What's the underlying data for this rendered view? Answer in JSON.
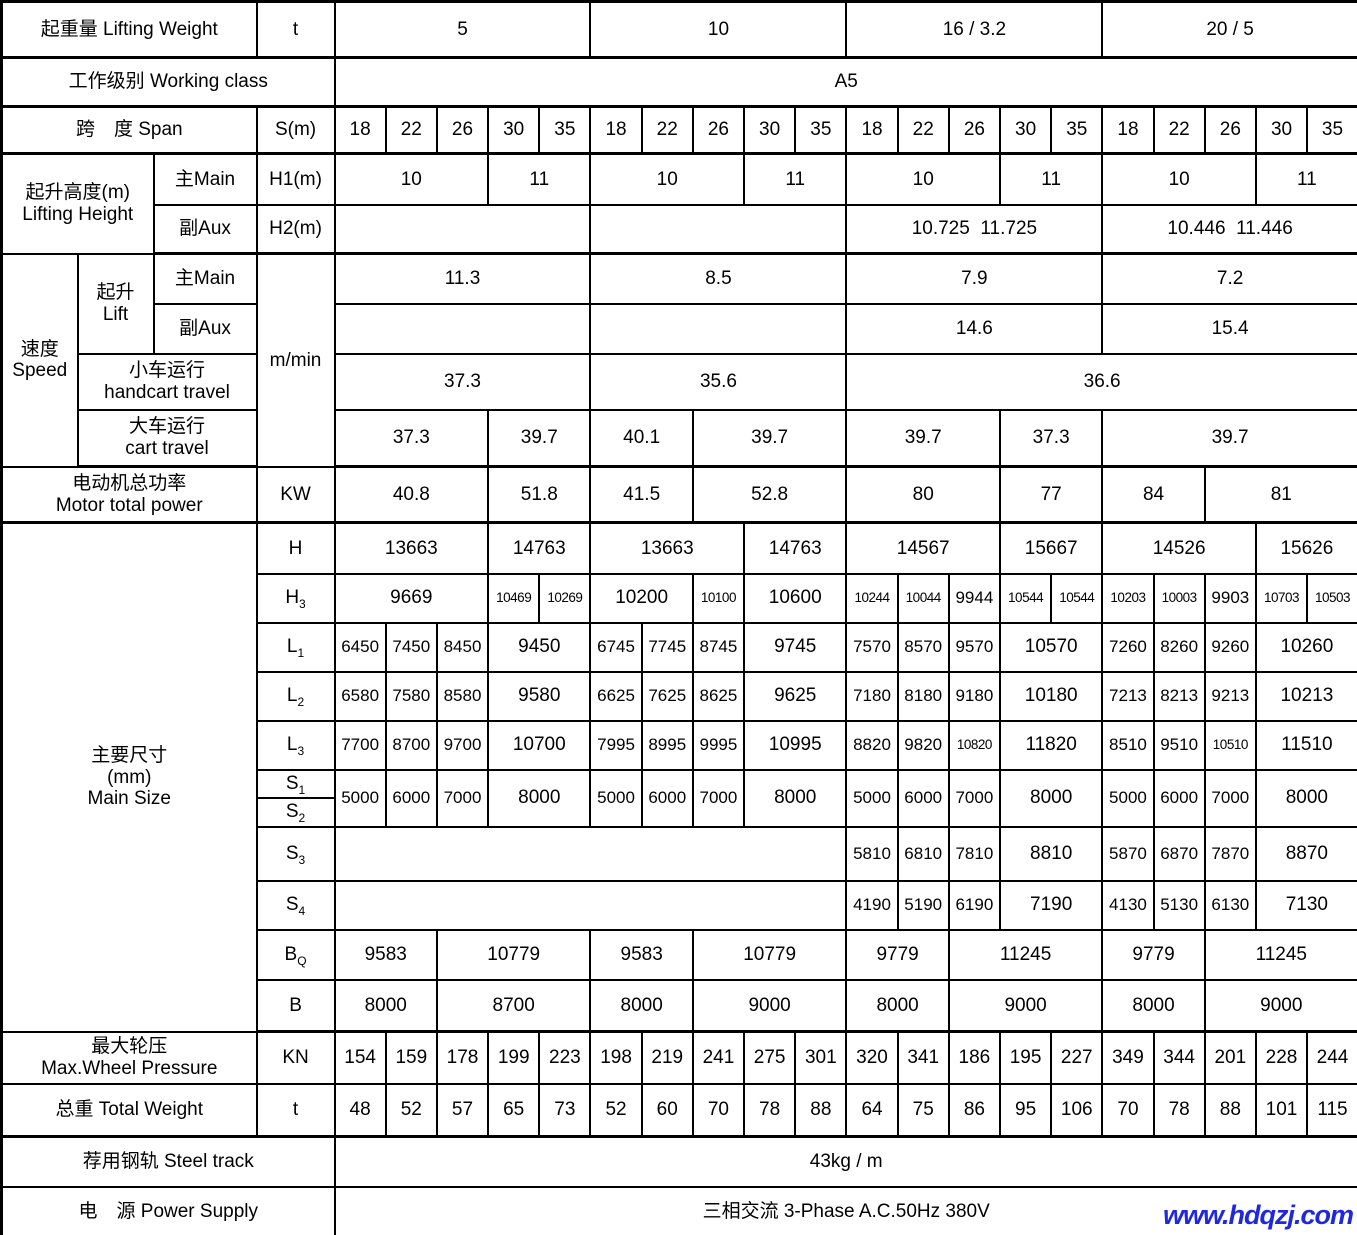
{
  "watermark": {
    "text": "www.hdqzj.com",
    "color": "#2028dd"
  },
  "table": {
    "rows": [
      {
        "name": "lifting-weight",
        "cells": [
          {
            "t": "起重量 Lifting Weight",
            "cs": 3,
            "kind": "label"
          },
          {
            "t": "t",
            "kind": "unit"
          },
          {
            "t": "5",
            "cs": 5
          },
          {
            "t": "10",
            "cs": 5
          },
          {
            "t": "16 / 3.2",
            "cs": 5
          },
          {
            "t": "20 / 5",
            "cs": 5
          }
        ]
      },
      {
        "name": "working-class",
        "cells": [
          {
            "t": "工作级别 Working class",
            "cs": 4,
            "kind": "label"
          },
          {
            "t": "A5",
            "cs": 20
          }
        ]
      },
      {
        "name": "span",
        "cells": [
          {
            "t": "跨　度 Span",
            "cs": 3,
            "kind": "label"
          },
          {
            "t": "S(m)",
            "kind": "unit"
          },
          {
            "t": "18"
          },
          {
            "t": "22"
          },
          {
            "t": "26"
          },
          {
            "t": "30"
          },
          {
            "t": "35"
          },
          {
            "t": "18"
          },
          {
            "t": "22"
          },
          {
            "t": "26"
          },
          {
            "t": "30"
          },
          {
            "t": "35"
          },
          {
            "t": "18"
          },
          {
            "t": "22"
          },
          {
            "t": "26"
          },
          {
            "t": "30"
          },
          {
            "t": "35"
          },
          {
            "t": "18"
          },
          {
            "t": "22"
          },
          {
            "t": "26"
          },
          {
            "t": "30"
          },
          {
            "t": "35"
          }
        ]
      },
      {
        "name": "lifting-height-main",
        "cells": [
          {
            "t": "起升高度(m)\nLifting Height",
            "cs": 2,
            "rs": 2,
            "kind": "label"
          },
          {
            "t": "主Main",
            "kind": "label"
          },
          {
            "t": "H1(m)",
            "kind": "unit"
          },
          {
            "t": "10",
            "cs": 3
          },
          {
            "t": "11",
            "cs": 2
          },
          {
            "t": "10",
            "cs": 3
          },
          {
            "t": "11",
            "cs": 2
          },
          {
            "t": "10",
            "cs": 3
          },
          {
            "t": "11",
            "cs": 2
          },
          {
            "t": "10",
            "cs": 3
          },
          {
            "t": "11",
            "cs": 2
          }
        ]
      },
      {
        "name": "lifting-height-aux",
        "cells": [
          {
            "t": "副Aux",
            "kind": "label"
          },
          {
            "t": "H2(m)",
            "kind": "unit"
          },
          {
            "t": "",
            "cs": 5
          },
          {
            "t": "",
            "cs": 5
          },
          {
            "t": "10.725  11.725",
            "cs": 5
          },
          {
            "t": "10.446  11.446",
            "cs": 5
          }
        ]
      },
      {
        "name": "speed-lift-main",
        "cells": [
          {
            "t": "速度\nSpeed",
            "rs": 4,
            "kind": "label"
          },
          {
            "t": "起升\nLift",
            "rs": 2,
            "kind": "label"
          },
          {
            "t": "主Main",
            "kind": "label"
          },
          {
            "t": "m/min",
            "rs": 4,
            "kind": "unit"
          },
          {
            "t": "11.3",
            "cs": 5
          },
          {
            "t": "8.5",
            "cs": 5
          },
          {
            "t": "7.9",
            "cs": 5
          },
          {
            "t": "7.2",
            "cs": 5
          }
        ]
      },
      {
        "name": "speed-lift-aux",
        "cells": [
          {
            "t": "副Aux",
            "kind": "label"
          },
          {
            "t": "",
            "cs": 5
          },
          {
            "t": "",
            "cs": 5
          },
          {
            "t": "14.6",
            "cs": 5
          },
          {
            "t": "15.4",
            "cs": 5
          }
        ]
      },
      {
        "name": "speed-trolley-travel",
        "cells": [
          {
            "t": "小车运行\nhandcart travel",
            "cs": 2,
            "kind": "label"
          },
          {
            "t": "37.3",
            "cs": 5
          },
          {
            "t": "35.6",
            "cs": 5
          },
          {
            "t": "36.6",
            "cs": 10
          }
        ]
      },
      {
        "name": "speed-cart-travel",
        "cells": [
          {
            "t": "大车运行\ncart travel",
            "cs": 2,
            "kind": "label"
          },
          {
            "t": "37.3",
            "cs": 3
          },
          {
            "t": "39.7",
            "cs": 2
          },
          {
            "t": "40.1",
            "cs": 2
          },
          {
            "t": "39.7",
            "cs": 3
          },
          {
            "t": "39.7",
            "cs": 3
          },
          {
            "t": "37.3",
            "cs": 2
          },
          {
            "t": "39.7",
            "cs": 5
          }
        ]
      },
      {
        "name": "motor-total-power",
        "cells": [
          {
            "t": "电动机总功率\nMotor total power",
            "cs": 3,
            "kind": "label"
          },
          {
            "t": "KW",
            "kind": "unit"
          },
          {
            "t": "40.8",
            "cs": 3
          },
          {
            "t": "51.8",
            "cs": 2
          },
          {
            "t": "41.5",
            "cs": 2
          },
          {
            "t": "52.8",
            "cs": 3
          },
          {
            "t": "80",
            "cs": 3
          },
          {
            "t": "77",
            "cs": 2
          },
          {
            "t": "84",
            "cs": 2
          },
          {
            "t": "81",
            "cs": 3
          }
        ]
      },
      {
        "name": "size-H",
        "cells": [
          {
            "t": "主要尺寸\n(mm)\nMain Size",
            "cs": 3,
            "rs": 11,
            "kind": "label"
          },
          {
            "t": "H",
            "kind": "unit"
          },
          {
            "t": "13663",
            "cs": 3
          },
          {
            "t": "14763",
            "cs": 2
          },
          {
            "t": "13663",
            "cs": 3
          },
          {
            "t": "14763",
            "cs": 2
          },
          {
            "t": "14567",
            "cs": 3
          },
          {
            "t": "15667",
            "cs": 2
          },
          {
            "t": "14526",
            "cs": 3
          },
          {
            "t": "15626",
            "cs": 2
          }
        ]
      },
      {
        "name": "size-H3",
        "cells": [
          {
            "t": "H",
            "sub": "3",
            "kind": "unit"
          },
          {
            "t": "9669",
            "cs": 3
          },
          {
            "t": "10469"
          },
          {
            "t": "10269"
          },
          {
            "t": "10200",
            "cs": 2
          },
          {
            "t": "10100"
          },
          {
            "t": "10600",
            "cs": 2
          },
          {
            "t": "10244"
          },
          {
            "t": "10044"
          },
          {
            "t": "9944"
          },
          {
            "t": "10544"
          },
          {
            "t": "10544"
          },
          {
            "t": "10203"
          },
          {
            "t": "10003"
          },
          {
            "t": "9903"
          },
          {
            "t": "10703"
          },
          {
            "t": "10503"
          }
        ]
      },
      {
        "name": "size-L1",
        "cells": [
          {
            "t": "L",
            "sub": "1",
            "kind": "unit"
          },
          {
            "t": "6450"
          },
          {
            "t": "7450"
          },
          {
            "t": "8450"
          },
          {
            "t": "9450",
            "cs": 2
          },
          {
            "t": "6745"
          },
          {
            "t": "7745"
          },
          {
            "t": "8745"
          },
          {
            "t": "9745",
            "cs": 2
          },
          {
            "t": "7570"
          },
          {
            "t": "8570"
          },
          {
            "t": "9570"
          },
          {
            "t": "10570",
            "cs": 2
          },
          {
            "t": "7260"
          },
          {
            "t": "8260"
          },
          {
            "t": "9260"
          },
          {
            "t": "10260",
            "cs": 2
          }
        ]
      },
      {
        "name": "size-L2",
        "cells": [
          {
            "t": "L",
            "sub": "2",
            "kind": "unit"
          },
          {
            "t": "6580"
          },
          {
            "t": "7580"
          },
          {
            "t": "8580"
          },
          {
            "t": "9580",
            "cs": 2
          },
          {
            "t": "6625"
          },
          {
            "t": "7625"
          },
          {
            "t": "8625"
          },
          {
            "t": "9625",
            "cs": 2
          },
          {
            "t": "7180"
          },
          {
            "t": "8180"
          },
          {
            "t": "9180"
          },
          {
            "t": "10180",
            "cs": 2
          },
          {
            "t": "7213"
          },
          {
            "t": "8213"
          },
          {
            "t": "9213"
          },
          {
            "t": "10213",
            "cs": 2
          }
        ]
      },
      {
        "name": "size-L3",
        "cells": [
          {
            "t": "L",
            "sub": "3",
            "kind": "unit"
          },
          {
            "t": "7700"
          },
          {
            "t": "8700"
          },
          {
            "t": "9700"
          },
          {
            "t": "10700",
            "cs": 2
          },
          {
            "t": "7995"
          },
          {
            "t": "8995"
          },
          {
            "t": "9995"
          },
          {
            "t": "10995",
            "cs": 2
          },
          {
            "t": "8820"
          },
          {
            "t": "9820"
          },
          {
            "t": "10820"
          },
          {
            "t": "11820",
            "cs": 2
          },
          {
            "t": "8510"
          },
          {
            "t": "9510"
          },
          {
            "t": "10510"
          },
          {
            "t": "11510",
            "cs": 2
          }
        ]
      },
      {
        "name": "size-S1",
        "cells": [
          {
            "t": "S",
            "sub": "1",
            "kind": "unit"
          },
          {
            "t": "5000",
            "rs": 2
          },
          {
            "t": "6000",
            "rs": 2
          },
          {
            "t": "7000",
            "rs": 2
          },
          {
            "t": "8000",
            "cs": 2,
            "rs": 2
          },
          {
            "t": "5000",
            "rs": 2
          },
          {
            "t": "6000",
            "rs": 2
          },
          {
            "t": "7000",
            "rs": 2
          },
          {
            "t": "8000",
            "cs": 2,
            "rs": 2
          },
          {
            "t": "5000",
            "rs": 2
          },
          {
            "t": "6000",
            "rs": 2
          },
          {
            "t": "7000",
            "rs": 2
          },
          {
            "t": "8000",
            "cs": 2,
            "rs": 2
          },
          {
            "t": "5000",
            "rs": 2
          },
          {
            "t": "6000",
            "rs": 2
          },
          {
            "t": "7000",
            "rs": 2
          },
          {
            "t": "8000",
            "cs": 2,
            "rs": 2
          }
        ]
      },
      {
        "name": "size-S2",
        "cells": [
          {
            "t": "S",
            "sub": "2",
            "kind": "unit"
          }
        ]
      },
      {
        "name": "size-S3",
        "cells": [
          {
            "t": "S",
            "sub": "3",
            "kind": "unit"
          },
          {
            "t": "",
            "cs": 10
          },
          {
            "t": "5810"
          },
          {
            "t": "6810"
          },
          {
            "t": "7810"
          },
          {
            "t": "8810",
            "cs": 2
          },
          {
            "t": "5870"
          },
          {
            "t": "6870"
          },
          {
            "t": "7870"
          },
          {
            "t": "8870",
            "cs": 2
          }
        ]
      },
      {
        "name": "size-S4",
        "cells": [
          {
            "t": "S",
            "sub": "4",
            "kind": "unit"
          },
          {
            "t": "",
            "cs": 10
          },
          {
            "t": "4190"
          },
          {
            "t": "5190"
          },
          {
            "t": "6190"
          },
          {
            "t": "7190",
            "cs": 2
          },
          {
            "t": "4130"
          },
          {
            "t": "5130"
          },
          {
            "t": "6130"
          },
          {
            "t": "7130",
            "cs": 2
          }
        ]
      },
      {
        "name": "size-BQ",
        "cells": [
          {
            "t": "B",
            "sub": "Q",
            "kind": "unit"
          },
          {
            "t": "9583",
            "cs": 2
          },
          {
            "t": "10779",
            "cs": 3
          },
          {
            "t": "9583",
            "cs": 2
          },
          {
            "t": "10779",
            "cs": 3
          },
          {
            "t": "9779",
            "cs": 2
          },
          {
            "t": "11245",
            "cs": 3
          },
          {
            "t": "9779",
            "cs": 2
          },
          {
            "t": "11245",
            "cs": 3
          }
        ]
      },
      {
        "name": "size-B",
        "cells": [
          {
            "t": "B",
            "kind": "unit"
          },
          {
            "t": "8000",
            "cs": 2
          },
          {
            "t": "8700",
            "cs": 3
          },
          {
            "t": "8000",
            "cs": 2
          },
          {
            "t": "9000",
            "cs": 3
          },
          {
            "t": "8000",
            "cs": 2
          },
          {
            "t": "9000",
            "cs": 3
          },
          {
            "t": "8000",
            "cs": 2
          },
          {
            "t": "9000",
            "cs": 3
          }
        ]
      },
      {
        "name": "max-wheel-pressure",
        "cells": [
          {
            "t": "最大轮压\nMax.Wheel Pressure",
            "cs": 3,
            "kind": "label"
          },
          {
            "t": "KN",
            "kind": "unit"
          },
          {
            "t": "154"
          },
          {
            "t": "159"
          },
          {
            "t": "178"
          },
          {
            "t": "199"
          },
          {
            "t": "223"
          },
          {
            "t": "198"
          },
          {
            "t": "219"
          },
          {
            "t": "241"
          },
          {
            "t": "275"
          },
          {
            "t": "301"
          },
          {
            "t": "320"
          },
          {
            "t": "341"
          },
          {
            "t": "186"
          },
          {
            "t": "195"
          },
          {
            "t": "227"
          },
          {
            "t": "349"
          },
          {
            "t": "344"
          },
          {
            "t": "201"
          },
          {
            "t": "228"
          },
          {
            "t": "244"
          }
        ]
      },
      {
        "name": "total-weight",
        "cells": [
          {
            "t": "总重 Total Weight",
            "cs": 3,
            "kind": "label"
          },
          {
            "t": "t",
            "kind": "unit"
          },
          {
            "t": "48"
          },
          {
            "t": "52"
          },
          {
            "t": "57"
          },
          {
            "t": "65"
          },
          {
            "t": "73"
          },
          {
            "t": "52"
          },
          {
            "t": "60"
          },
          {
            "t": "70"
          },
          {
            "t": "78"
          },
          {
            "t": "88"
          },
          {
            "t": "64"
          },
          {
            "t": "75"
          },
          {
            "t": "86"
          },
          {
            "t": "95"
          },
          {
            "t": "106"
          },
          {
            "t": "70"
          },
          {
            "t": "78"
          },
          {
            "t": "88"
          },
          {
            "t": "101"
          },
          {
            "t": "115"
          }
        ]
      },
      {
        "name": "steel-track",
        "cells": [
          {
            "t": "荐用钢轨 Steel track",
            "cs": 4,
            "kind": "label"
          },
          {
            "t": "43kg / m",
            "cs": 20
          }
        ]
      },
      {
        "name": "power-supply",
        "cells": [
          {
            "t": "电　源 Power Supply",
            "cs": 4,
            "kind": "label"
          },
          {
            "t": "三相交流 3-Phase A.C.50Hz 380V",
            "cs": 20
          }
        ]
      }
    ]
  }
}
